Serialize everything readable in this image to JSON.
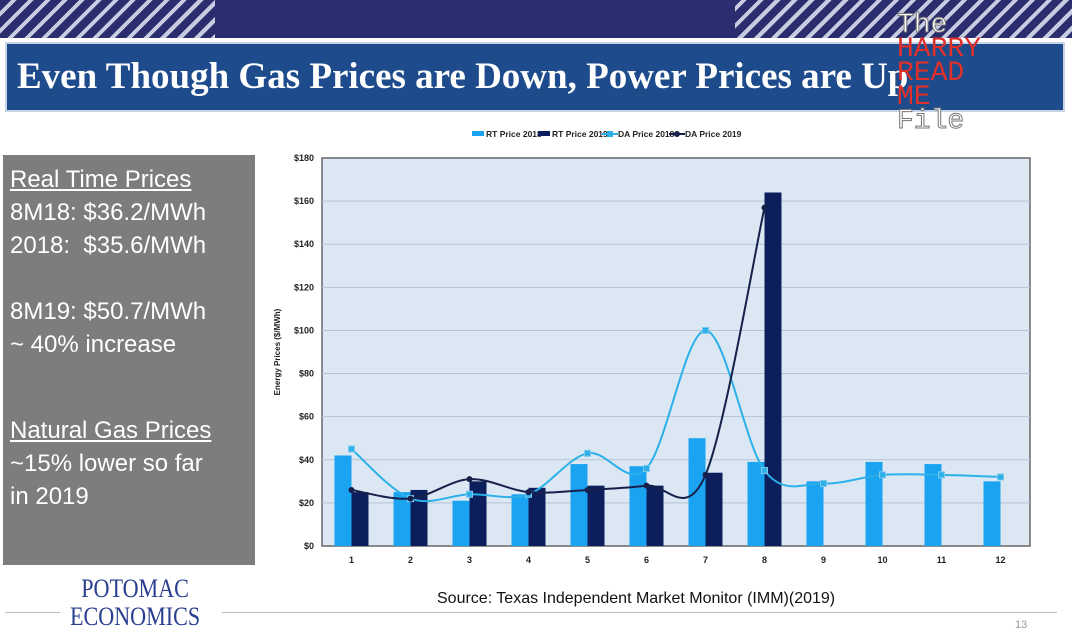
{
  "slide": {
    "title": "Even Though Gas Prices are Down, Power Prices are Up",
    "page_number": "13",
    "source": "Source: Texas Independent Market Monitor (IMM)(2019)",
    "logo": [
      "POTOMAC",
      "ECONOMICS"
    ],
    "watermark": [
      "The",
      "HARRY",
      "READ",
      "ME",
      "File"
    ]
  },
  "left_panel": {
    "rt_heading": "Real Time Prices",
    "rt_lines": [
      "8M18: $36.2/MWh",
      "2018:  $35.6/MWh"
    ],
    "rt_lines2": [
      "8M19: $50.7/MWh",
      "~ 40% increase"
    ],
    "gas_heading": "Natural Gas Prices",
    "gas_lines": [
      "~15% lower so far",
      "in 2019"
    ]
  },
  "chart_data": {
    "type": "bar",
    "title": "",
    "xlabel": "",
    "ylabel": "Energy Prices ($/MWh)",
    "ylim": [
      0,
      180
    ],
    "yticks": [
      "$0",
      "$20",
      "$40",
      "$60",
      "$80",
      "$100",
      "$120",
      "$140",
      "$160",
      "$180"
    ],
    "categories": [
      "1",
      "2",
      "3",
      "4",
      "5",
      "6",
      "7",
      "8",
      "9",
      "10",
      "11",
      "12"
    ],
    "legend_position": "top",
    "series": [
      {
        "name": "RT Price 2018",
        "kind": "bar",
        "color": "#1aa3f0",
        "values": [
          42,
          25,
          21,
          24,
          38,
          37,
          50,
          39,
          30,
          39,
          38,
          30
        ]
      },
      {
        "name": "RT Price 2019",
        "kind": "bar",
        "color": "#0c1f5c",
        "values": [
          25,
          26,
          30,
          27,
          28,
          28,
          34,
          164,
          null,
          null,
          null,
          null
        ]
      },
      {
        "name": "DA Price 2018",
        "kind": "line",
        "color": "#2bb0e8",
        "values": [
          45,
          22,
          24,
          24,
          43,
          36,
          100,
          35,
          29,
          33,
          33,
          32
        ]
      },
      {
        "name": "DA Price 2019",
        "kind": "line",
        "color": "#17204a",
        "values": [
          26,
          22,
          31,
          25,
          26,
          28,
          33,
          157,
          null,
          null,
          null,
          null
        ]
      }
    ]
  }
}
